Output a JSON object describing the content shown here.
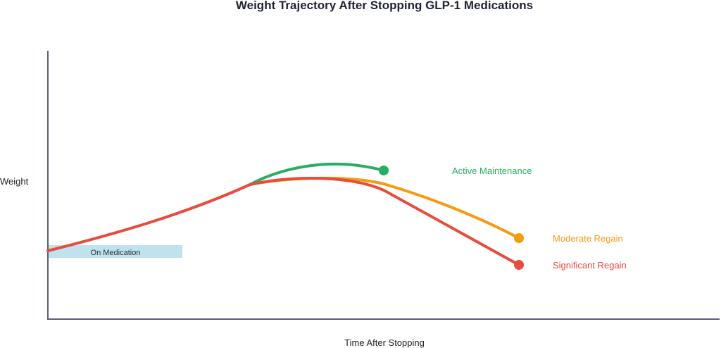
{
  "title": "Weight Trajectory After Stopping GLP-1 Medications",
  "y_axis_label": "Weight",
  "x_axis_label": "Time After Stopping",
  "phase_label": "On Medication",
  "series": [
    {
      "name": "Active Maintenance",
      "color": "#27ae60"
    },
    {
      "name": "Moderate Regain",
      "color": "#f39c12"
    },
    {
      "name": "Significant Regain",
      "color": "#e74c3c"
    }
  ],
  "colors": {
    "axis": "#5f5f7a",
    "phase_band": "#bfe2ec",
    "title": "#1f2233"
  }
}
